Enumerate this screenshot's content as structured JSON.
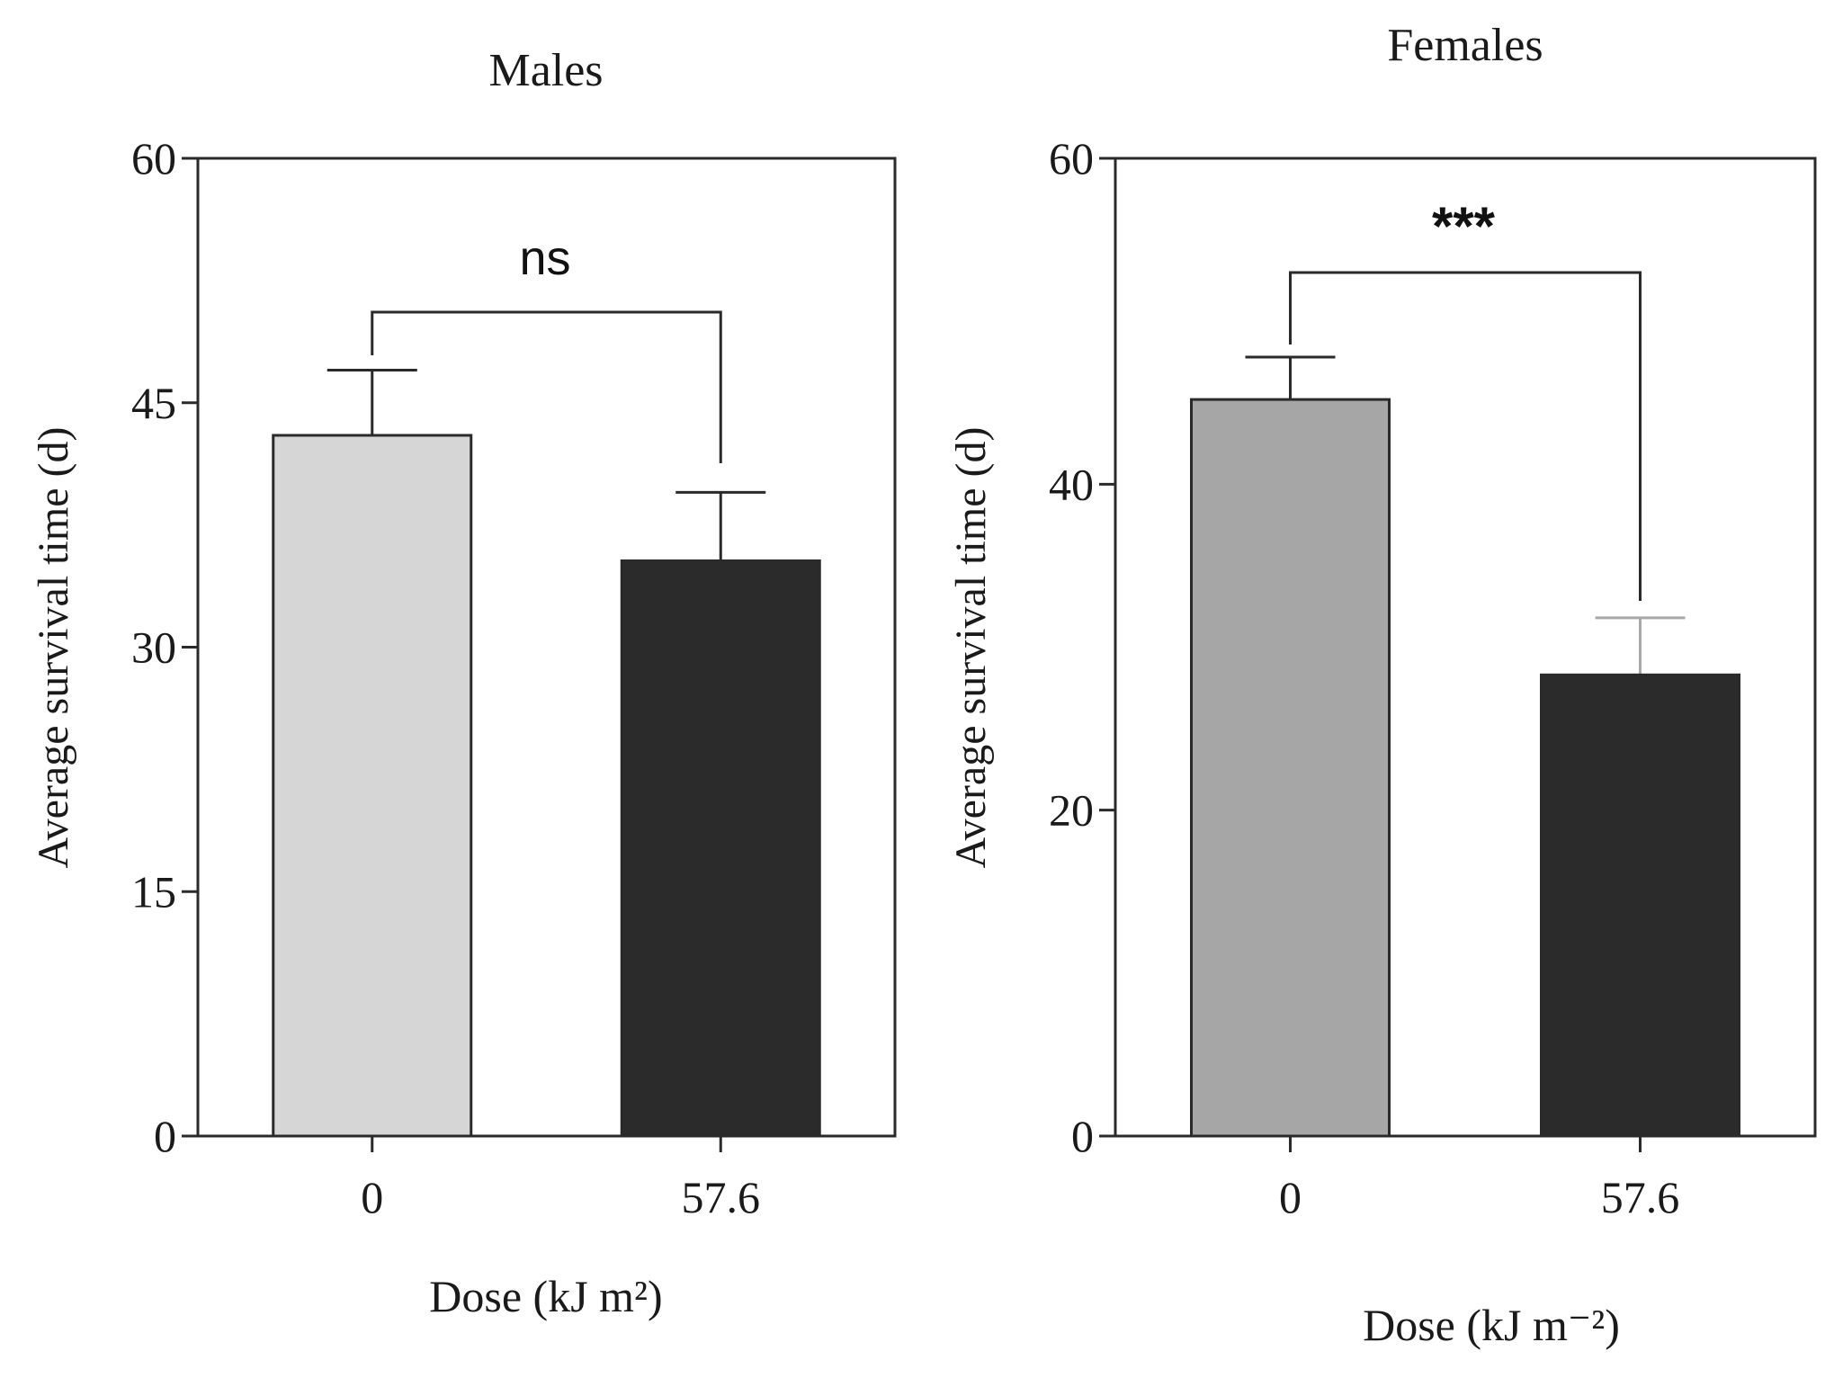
{
  "chart_data": [
    {
      "type": "bar",
      "title": "Males",
      "xlabel": "Dose (kJ m²)",
      "ylabel": "Average survival time (d)",
      "categories": [
        "0",
        "57.6"
      ],
      "values": [
        43,
        35.3
      ],
      "errors": [
        4,
        4.2
      ],
      "ylim": [
        0,
        60
      ],
      "yticks": [
        "0",
        "15",
        "30",
        "45",
        "60"
      ],
      "significance": "ns",
      "colors": [
        "#d6d6d6",
        "#2b2b2b"
      ],
      "error_colors": [
        "#2a2a2a",
        "#2a2a2a"
      ],
      "grid": false
    },
    {
      "type": "bar",
      "title": "Females",
      "xlabel": "Dose (kJ m⁻²)",
      "ylabel": "Average survival time (d)",
      "categories": [
        "0",
        "57.6"
      ],
      "values": [
        45.2,
        28.3
      ],
      "errors": [
        2.6,
        3.5
      ],
      "ylim": [
        0,
        60
      ],
      "yticks": [
        "0",
        "20",
        "40",
        "60"
      ],
      "significance": "***",
      "colors": [
        "#a6a6a6",
        "#2b2b2b"
      ],
      "error_colors": [
        "#2a2a2a",
        "#a9a9a9"
      ],
      "grid": false
    }
  ]
}
